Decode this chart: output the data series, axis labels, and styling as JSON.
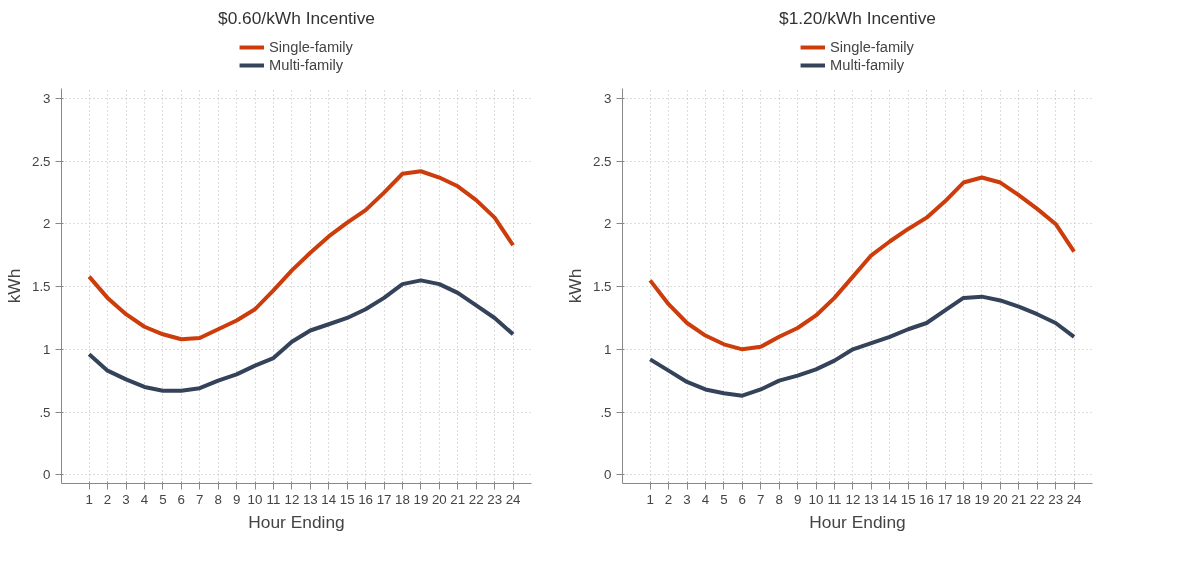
{
  "chart_data": [
    {
      "type": "line",
      "title": "$0.60/kWh Incentive",
      "xlabel": "Hour Ending",
      "ylabel": "kWh",
      "x": [
        1,
        2,
        3,
        4,
        5,
        6,
        7,
        8,
        9,
        10,
        11,
        12,
        13,
        14,
        15,
        16,
        17,
        18,
        19,
        20,
        21,
        22,
        23,
        24
      ],
      "series": [
        {
          "name": "Single-family",
          "color": "#cc3d0b",
          "values": [
            1.58,
            1.41,
            1.28,
            1.18,
            1.12,
            1.08,
            1.09,
            1.16,
            1.23,
            1.32,
            1.47,
            1.63,
            1.77,
            1.9,
            2.01,
            2.11,
            2.25,
            2.4,
            2.42,
            2.37,
            2.3,
            2.19,
            2.05,
            1.83
          ]
        },
        {
          "name": "Multi-family",
          "color": "#34435a",
          "values": [
            0.96,
            0.83,
            0.76,
            0.7,
            0.67,
            0.67,
            0.69,
            0.75,
            0.8,
            0.87,
            0.93,
            1.06,
            1.15,
            1.2,
            1.25,
            1.32,
            1.41,
            1.52,
            1.55,
            1.52,
            1.45,
            1.35,
            1.25,
            1.12
          ]
        }
      ],
      "xlim": [
        -0.5,
        25
      ],
      "xticks": [
        1,
        2,
        3,
        4,
        5,
        6,
        7,
        8,
        9,
        10,
        11,
        12,
        13,
        14,
        15,
        16,
        17,
        18,
        19,
        20,
        21,
        22,
        23,
        24
      ],
      "ylim": [
        -0.07,
        3.08
      ],
      "yticks": [
        0,
        {
          "value": 0.5,
          "label": ".5"
        },
        1,
        1.5,
        2,
        2.5,
        3
      ],
      "grid": true,
      "legend": "top",
      "line_style": "solid",
      "marker": "none"
    },
    {
      "type": "line",
      "title": "$1.20/kWh Incentive",
      "xlabel": "Hour Ending",
      "ylabel": "kWh",
      "x": [
        1,
        2,
        3,
        4,
        5,
        6,
        7,
        8,
        9,
        10,
        11,
        12,
        13,
        14,
        15,
        16,
        17,
        18,
        19,
        20,
        21,
        22,
        23,
        24
      ],
      "series": [
        {
          "name": "Single-family",
          "color": "#cc3d0b",
          "values": [
            1.55,
            1.36,
            1.21,
            1.11,
            1.04,
            1.0,
            1.02,
            1.1,
            1.17,
            1.27,
            1.41,
            1.58,
            1.75,
            1.86,
            1.96,
            2.05,
            2.18,
            2.33,
            2.37,
            2.33,
            2.23,
            2.12,
            2.0,
            1.78
          ]
        },
        {
          "name": "Multi-family",
          "color": "#34435a",
          "values": [
            0.92,
            0.83,
            0.74,
            0.68,
            0.65,
            0.63,
            0.68,
            0.75,
            0.79,
            0.84,
            0.91,
            1.0,
            1.05,
            1.1,
            1.16,
            1.21,
            1.31,
            1.41,
            1.42,
            1.39,
            1.34,
            1.28,
            1.21,
            1.1
          ]
        }
      ],
      "xlim": [
        -0.5,
        25
      ],
      "xticks": [
        1,
        2,
        3,
        4,
        5,
        6,
        7,
        8,
        9,
        10,
        11,
        12,
        13,
        14,
        15,
        16,
        17,
        18,
        19,
        20,
        21,
        22,
        23,
        24
      ],
      "ylim": [
        -0.07,
        3.08
      ],
      "yticks": [
        0,
        {
          "value": 0.5,
          "label": ".5"
        },
        1,
        1.5,
        2,
        2.5,
        3
      ],
      "grid": true,
      "legend": "top",
      "line_style": "solid",
      "marker": "none"
    }
  ]
}
